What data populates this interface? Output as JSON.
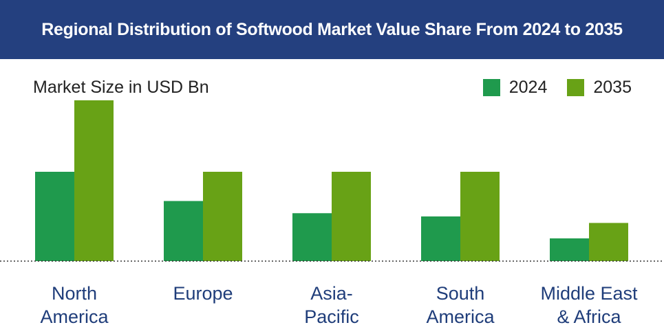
{
  "title": "Regional Distribution of Softwood Market Value Share From 2024 to 2035",
  "colors": {
    "header_bg": "#24407f",
    "series_2024": "#1f9a4d",
    "series_2035": "#68a216",
    "category_label": "#1f3d7a"
  },
  "chart_data": {
    "type": "bar",
    "title": "Regional Distribution of Softwood Market Value Share From 2024 to 2035",
    "ylabel": "Market Size in USD Bn",
    "xlabel": "",
    "categories": [
      [
        "North",
        "America"
      ],
      [
        "Europe"
      ],
      [
        "Asia-",
        "Pacific"
      ],
      [
        "South",
        "America"
      ],
      [
        "Middle East",
        "& Africa"
      ]
    ],
    "series": [
      {
        "name": "2024",
        "color": "#1f9a4d",
        "values": [
          55,
          37,
          29.5,
          27.5,
          14
        ]
      },
      {
        "name": "2035",
        "color": "#68a216",
        "values": [
          99,
          55,
          55,
          55,
          23.5
        ]
      }
    ],
    "ylim": [
      0,
      110
    ],
    "grid": false,
    "legend_position": "top-right",
    "baseline": "dotted"
  }
}
